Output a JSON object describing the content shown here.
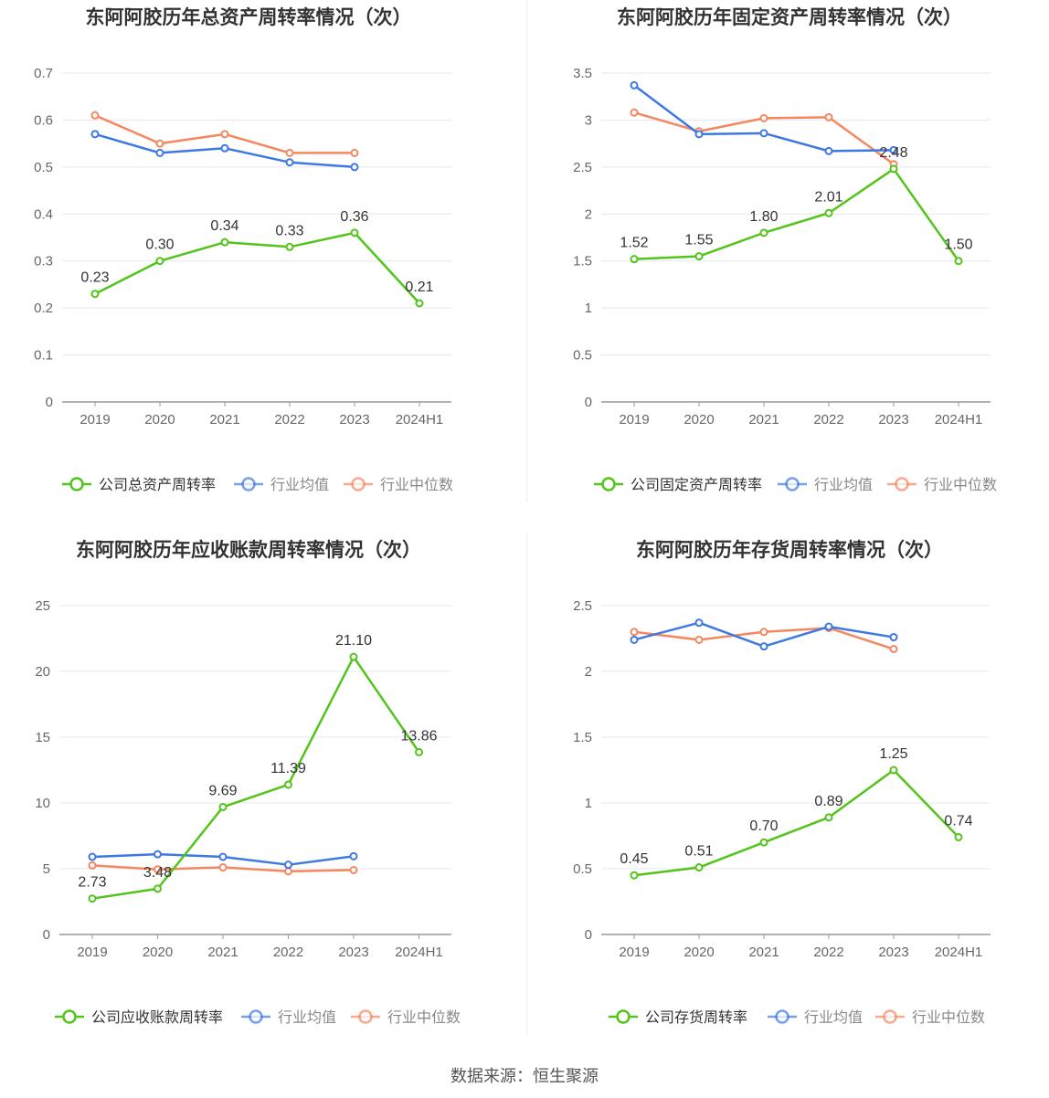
{
  "source": "数据来源：恒生聚源",
  "colors": {
    "company": "#52c41a",
    "avg": "#3d78e3",
    "median": "#f4875f",
    "grid": "#e6e8ee",
    "axis": "#999999",
    "text": "#333333"
  },
  "chart_data": [
    {
      "type": "line",
      "title": "东阿阿胶历年总资产周转率情况（次）",
      "categories": [
        "2019",
        "2020",
        "2021",
        "2022",
        "2023",
        "2024H1"
      ],
      "ylim": [
        0,
        0.7
      ],
      "yticks": [
        "0",
        "0.1",
        "0.2",
        "0.3",
        "0.4",
        "0.5",
        "0.6",
        "0.7"
      ],
      "tick_values": [
        0,
        0.1,
        0.2,
        0.3,
        0.4,
        0.5,
        0.6,
        0.7
      ],
      "legend": "bottom",
      "series": [
        {
          "name": "公司总资产周转率",
          "role": "company",
          "values": [
            0.23,
            0.3,
            0.34,
            0.33,
            0.36,
            0.21
          ],
          "labels": [
            "0.23",
            "0.30",
            "0.34",
            "0.33",
            "0.36",
            "0.21"
          ]
        },
        {
          "name": "行业均值",
          "role": "avg",
          "values": [
            0.57,
            0.53,
            0.54,
            0.51,
            0.5,
            null
          ]
        },
        {
          "name": "行业中位数",
          "role": "median",
          "values": [
            0.61,
            0.55,
            0.57,
            0.53,
            0.53,
            null
          ]
        }
      ]
    },
    {
      "type": "line",
      "title": "东阿阿胶历年固定资产周转率情况（次）",
      "categories": [
        "2019",
        "2020",
        "2021",
        "2022",
        "2023",
        "2024H1"
      ],
      "ylim": [
        0,
        3.5
      ],
      "yticks": [
        "0",
        "0.5",
        "1",
        "1.5",
        "2",
        "2.5",
        "3",
        "3.5"
      ],
      "tick_values": [
        0,
        0.5,
        1,
        1.5,
        2,
        2.5,
        3,
        3.5
      ],
      "legend": "bottom",
      "series": [
        {
          "name": "公司固定资产周转率",
          "role": "company",
          "values": [
            1.52,
            1.55,
            1.8,
            2.01,
            2.48,
            1.5
          ],
          "labels": [
            "1.52",
            "1.55",
            "1.80",
            "2.01",
            "2.48",
            "1.50"
          ]
        },
        {
          "name": "行业均值",
          "role": "avg",
          "values": [
            3.37,
            2.85,
            2.86,
            2.67,
            2.68,
            null
          ]
        },
        {
          "name": "行业中位数",
          "role": "median",
          "values": [
            3.08,
            2.88,
            3.02,
            3.03,
            2.53,
            null
          ]
        }
      ]
    },
    {
      "type": "line",
      "title": "东阿阿胶历年应收账款周转率情况（次）",
      "categories": [
        "2019",
        "2020",
        "2021",
        "2022",
        "2023",
        "2024H1"
      ],
      "ylim": [
        0,
        25
      ],
      "yticks": [
        "0",
        "5",
        "10",
        "15",
        "20",
        "25"
      ],
      "tick_values": [
        0,
        5,
        10,
        15,
        20,
        25
      ],
      "legend": "bottom",
      "series": [
        {
          "name": "公司应收账款周转率",
          "role": "company",
          "values": [
            2.73,
            3.48,
            9.69,
            11.39,
            21.1,
            13.86
          ],
          "labels": [
            "2.73",
            "3.48",
            "9.69",
            "11.39",
            "21.10",
            "13.86"
          ]
        },
        {
          "name": "行业均值",
          "role": "avg",
          "values": [
            5.9,
            6.1,
            5.9,
            5.3,
            5.95,
            null
          ]
        },
        {
          "name": "行业中位数",
          "role": "median",
          "values": [
            5.25,
            4.95,
            5.1,
            4.8,
            4.9,
            null
          ]
        }
      ]
    },
    {
      "type": "line",
      "title": "东阿阿胶历年存货周转率情况（次）",
      "categories": [
        "2019",
        "2020",
        "2021",
        "2022",
        "2023",
        "2024H1"
      ],
      "ylim": [
        0,
        2.5
      ],
      "yticks": [
        "0",
        "0.5",
        "1",
        "1.5",
        "2",
        "2.5"
      ],
      "tick_values": [
        0,
        0.5,
        1,
        1.5,
        2,
        2.5
      ],
      "legend": "bottom",
      "series": [
        {
          "name": "公司存货周转率",
          "role": "company",
          "values": [
            0.45,
            0.51,
            0.7,
            0.89,
            1.25,
            0.74
          ],
          "labels": [
            "0.45",
            "0.51",
            "0.70",
            "0.89",
            "1.25",
            "0.74"
          ]
        },
        {
          "name": "行业均值",
          "role": "avg",
          "values": [
            2.24,
            2.37,
            2.19,
            2.34,
            2.26,
            null
          ]
        },
        {
          "name": "行业中位数",
          "role": "median",
          "values": [
            2.3,
            2.24,
            2.3,
            2.33,
            2.17,
            null
          ]
        }
      ]
    }
  ]
}
